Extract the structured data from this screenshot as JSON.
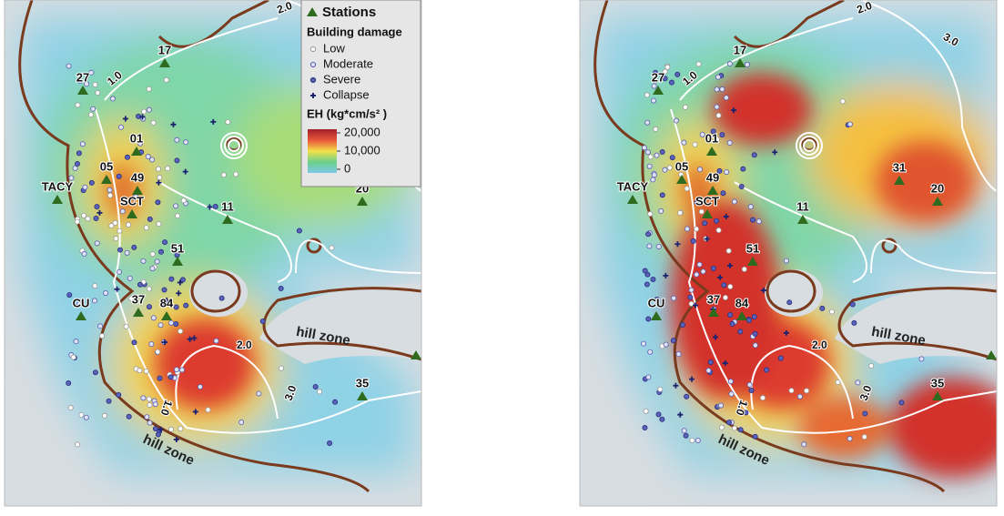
{
  "legend": {
    "stations": "Stations",
    "damage_title": "Building damage",
    "damage_levels": [
      "Low",
      "Moderate",
      "Severe",
      "Collapse"
    ],
    "scale_title": "EH (kg*cm/s² )",
    "scale_ticks": [
      "20,000",
      "10,000",
      "0"
    ]
  },
  "panels": [
    {
      "stations": [
        "17",
        "27",
        "01",
        "05",
        "TACY",
        "49",
        "SCT",
        "11",
        "20",
        "51",
        "CU",
        "37",
        "84",
        "35"
      ],
      "contour_labels": [
        "2.0",
        "1.0",
        "2.0",
        "3.0",
        "1.0"
      ],
      "zones": [
        "hill zone",
        "hill zone"
      ]
    },
    {
      "stations": [
        "17",
        "27",
        "01",
        "05",
        "TACY",
        "49",
        "SCT",
        "11",
        "20",
        "51",
        "CU",
        "37",
        "84",
        "35",
        "31"
      ],
      "contour_labels": [
        "2.0",
        "3.0",
        "1.0",
        "2.0",
        "3.0",
        "1.0"
      ],
      "zones": [
        "hill zone",
        "hill zone"
      ]
    }
  ]
}
